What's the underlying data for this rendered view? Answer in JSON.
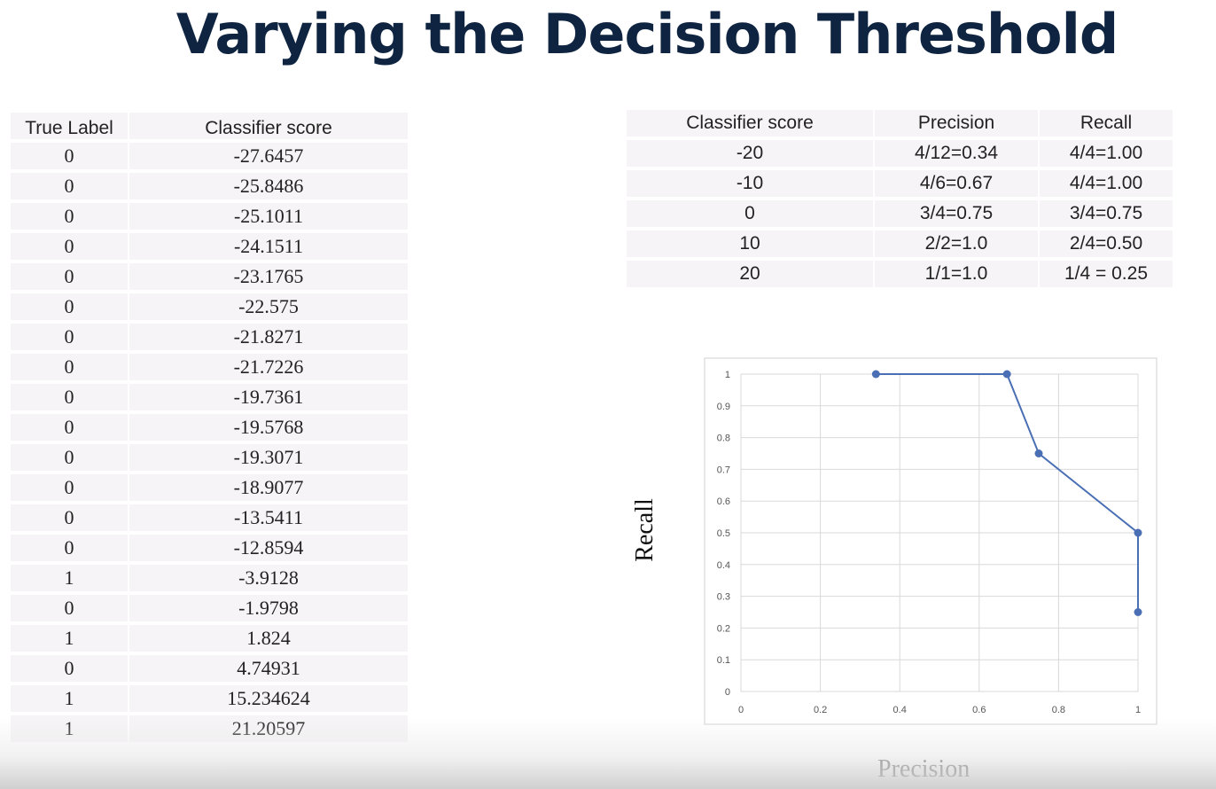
{
  "slide": {
    "title": "Varying the Decision Threshold"
  },
  "scores_table": {
    "headers": [
      "True Label",
      "Classifier score"
    ],
    "rows": [
      [
        "0",
        "-27.6457"
      ],
      [
        "0",
        "-25.8486"
      ],
      [
        "0",
        "-25.1011"
      ],
      [
        "0",
        "-24.1511"
      ],
      [
        "0",
        "-23.1765"
      ],
      [
        "0",
        "-22.575"
      ],
      [
        "0",
        "-21.8271"
      ],
      [
        "0",
        "-21.7226"
      ],
      [
        "0",
        "-19.7361"
      ],
      [
        "0",
        "-19.5768"
      ],
      [
        "0",
        "-19.3071"
      ],
      [
        "0",
        "-18.9077"
      ],
      [
        "0",
        "-13.5411"
      ],
      [
        "0",
        "-12.8594"
      ],
      [
        "1",
        "-3.9128"
      ],
      [
        "0",
        "-1.9798"
      ],
      [
        "1",
        "1.824"
      ],
      [
        "0",
        "4.74931"
      ],
      [
        "1",
        "15.234624"
      ],
      [
        "1",
        "21.20597"
      ]
    ]
  },
  "threshold_table": {
    "headers": [
      "Classifier score",
      "Precision",
      "Recall"
    ],
    "rows": [
      [
        "-20",
        "4/12=0.34",
        "4/4=1.00"
      ],
      [
        "-10",
        "4/6=0.67",
        "4/4=1.00"
      ],
      [
        "0",
        "3/4=0.75",
        "3/4=0.75"
      ],
      [
        "10",
        "2/2=1.0",
        "2/4=0.50"
      ],
      [
        "20",
        "1/1=1.0",
        "1/4 = 0.25"
      ]
    ]
  },
  "chart_data": {
    "type": "line",
    "xlabel": "Precision",
    "ylabel": "Recall",
    "xlim": [
      0,
      1
    ],
    "ylim": [
      0,
      1
    ],
    "x_ticks": [
      "0",
      "0.2",
      "0.4",
      "0.6",
      "0.8",
      "1"
    ],
    "y_ticks": [
      "0",
      "0.1",
      "0.2",
      "0.3",
      "0.4",
      "0.5",
      "0.6",
      "0.7",
      "0.8",
      "0.9",
      "1"
    ],
    "grid": true,
    "series": [
      {
        "x": [
          0.34,
          0.67,
          0.75,
          1.0,
          1.0
        ],
        "y": [
          1.0,
          1.0,
          0.75,
          0.5,
          0.25
        ]
      }
    ],
    "color": "#4a6fb4"
  }
}
